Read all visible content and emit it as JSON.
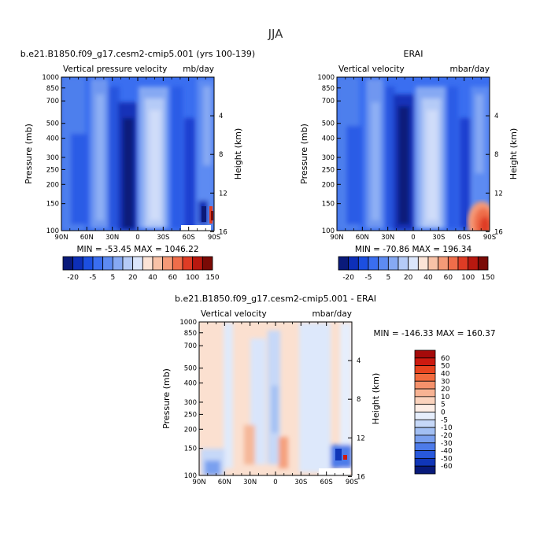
{
  "figure": {
    "title": "JJA"
  },
  "chart_data": [
    {
      "type": "heatmap",
      "title": "b.e21.B1850.f09_g17.cesm2-cmip5.001 (yrs 100-139)",
      "left_label": "Vertical pressure velocity",
      "units_label": "mb/day",
      "xlabel": "",
      "ylabel": "Pressure (mb)",
      "y2label": "Height (km)",
      "x_ticks": [
        "90N",
        "60N",
        "30N",
        "0",
        "30S",
        "60S",
        "90S"
      ],
      "y_ticks": [
        "100",
        "150",
        "200",
        "250",
        "300",
        "400",
        "500",
        "700",
        "850",
        "1000"
      ],
      "y2_ticks": [
        "16",
        "12",
        "8",
        "4"
      ],
      "ylim": [
        1000,
        100
      ],
      "minmax": "MIN = -53.45   MAX = 1046.22",
      "colorbar": {
        "labels": [
          "-20",
          "-5",
          "5",
          "20",
          "40",
          "60",
          "100",
          "150"
        ],
        "colors": [
          "#0a1a7a",
          "#0d2fb8",
          "#1c4fe0",
          "#3a6ef0",
          "#5d8bf2",
          "#86a9f3",
          "#b5cbf7",
          "#dbe6fb",
          "#fbe3d6",
          "#f8c2a7",
          "#f59a77",
          "#ef6d4a",
          "#df3c25",
          "#b8180f",
          "#7a0a06"
        ]
      }
    },
    {
      "type": "heatmap",
      "title": "ERAI",
      "left_label": "Vertical velocity",
      "units_label": "mbar/day",
      "xlabel": "",
      "ylabel": "Pressure (mb)",
      "y2label": "Height (km)",
      "x_ticks": [
        "90N",
        "60N",
        "30N",
        "0",
        "30S",
        "60S",
        "90S"
      ],
      "y_ticks": [
        "100",
        "150",
        "200",
        "250",
        "300",
        "400",
        "500",
        "700",
        "850",
        "1000"
      ],
      "y2_ticks": [
        "16",
        "12",
        "8",
        "4"
      ],
      "ylim": [
        1000,
        100
      ],
      "minmax": "MIN = -70.86   MAX = 196.34",
      "colorbar": {
        "labels": [
          "-20",
          "-5",
          "5",
          "20",
          "40",
          "60",
          "100",
          "150"
        ],
        "colors": [
          "#0a1a7a",
          "#0d2fb8",
          "#1c4fe0",
          "#3a6ef0",
          "#5d8bf2",
          "#86a9f3",
          "#b5cbf7",
          "#dbe6fb",
          "#fbe3d6",
          "#f8c2a7",
          "#f59a77",
          "#ef6d4a",
          "#df3c25",
          "#b8180f",
          "#7a0a06"
        ]
      }
    },
    {
      "type": "heatmap",
      "title": "b.e21.B1850.f09_g17.cesm2-cmip5.001 - ERAI",
      "left_label": "Vertical velocity",
      "units_label": "mbar/day",
      "xlabel": "",
      "ylabel": "Pressure (mb)",
      "y2label": "Height (km)",
      "x_ticks": [
        "90N",
        "60N",
        "30N",
        "0",
        "30S",
        "60S",
        "90S"
      ],
      "y_ticks": [
        "100",
        "150",
        "200",
        "250",
        "300",
        "400",
        "500",
        "700",
        "850",
        "1000"
      ],
      "y2_ticks": [
        "16",
        "12",
        "8",
        "4"
      ],
      "ylim": [
        1000,
        100
      ],
      "minmax": "MIN = -146.33   MAX = 160.37",
      "colorbar": {
        "labels": [
          "60",
          "50",
          "40",
          "30",
          "20",
          "10",
          "5",
          "0",
          "-5",
          "-10",
          "-20",
          "-30",
          "-40",
          "-50",
          "-60"
        ],
        "colors": [
          "#a50a0a",
          "#cc1a10",
          "#e8441f",
          "#f26b3e",
          "#f5916b",
          "#f8b393",
          "#fbd3bd",
          "#fdeee6",
          "#e6eefc",
          "#c6d8f8",
          "#a2bff3",
          "#7aa0ef",
          "#4d7be9",
          "#2858dc",
          "#1036b8",
          "#081a7a"
        ]
      }
    }
  ]
}
